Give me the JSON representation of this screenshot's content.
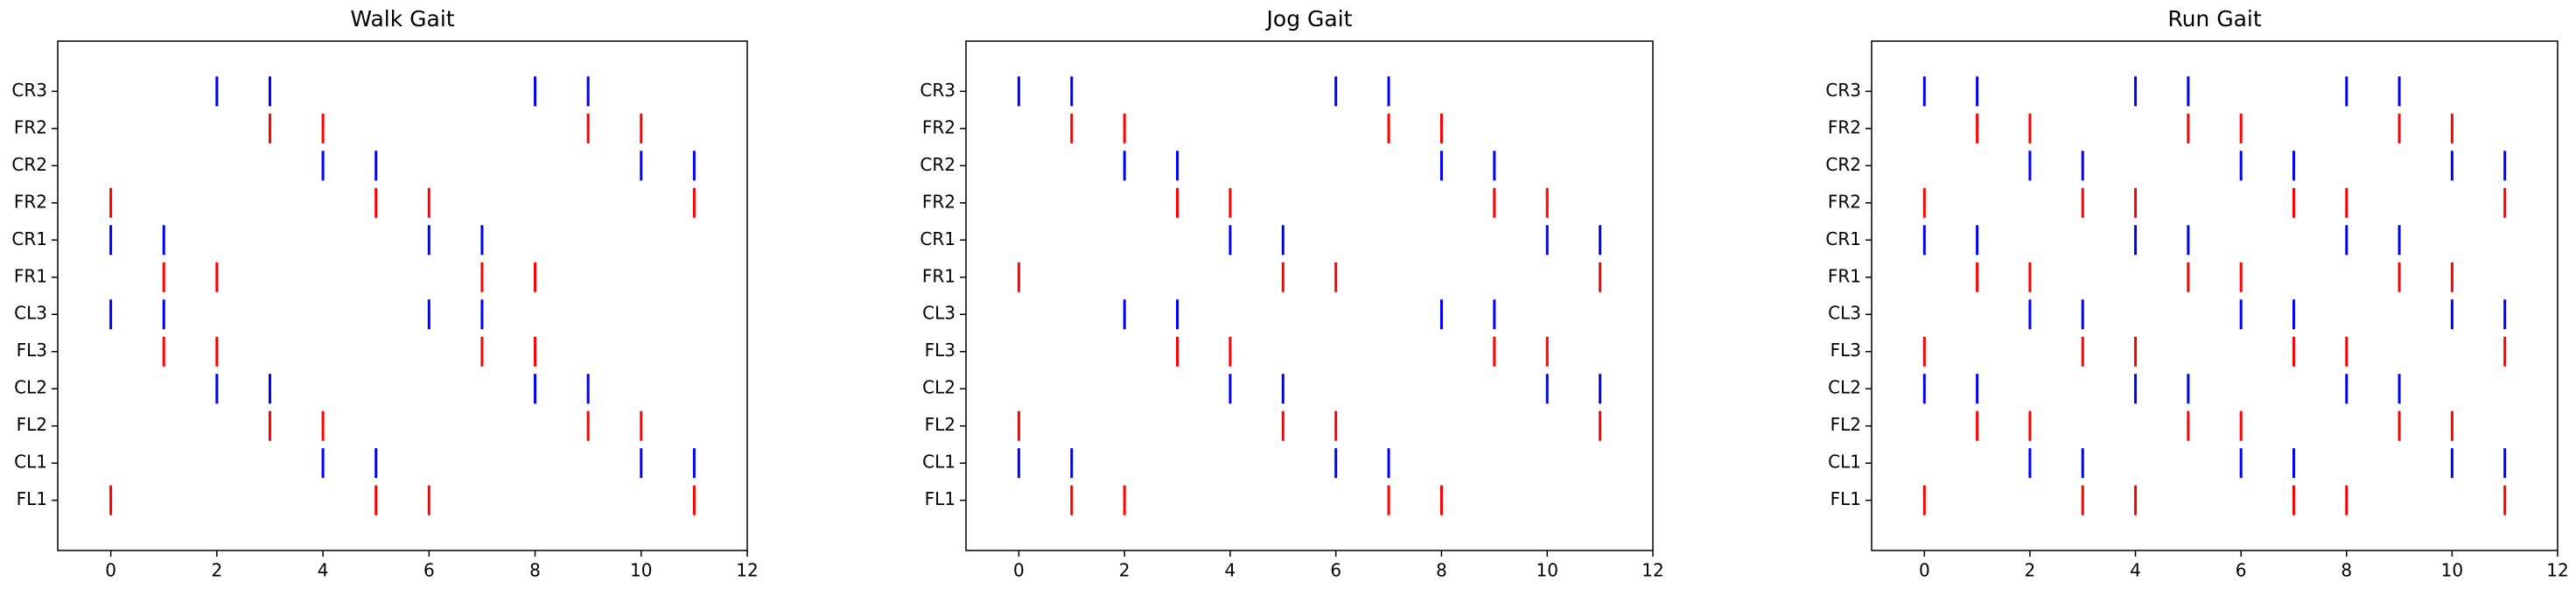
{
  "chart_data": [
    {
      "type": "eventplot",
      "title": "Walk Gait",
      "categories": [
        "FL1",
        "CL1",
        "FL2",
        "CL2",
        "FL3",
        "CL3",
        "FR1",
        "CR1",
        "FR2",
        "CR2",
        "FR2",
        "CR3"
      ],
      "colors": [
        "red",
        "blue",
        "red",
        "blue",
        "red",
        "blue",
        "red",
        "blue",
        "red",
        "blue",
        "red",
        "blue"
      ],
      "values": [
        [
          0,
          5,
          6,
          11
        ],
        [
          4,
          5,
          10,
          11
        ],
        [
          3,
          4,
          9,
          10
        ],
        [
          2,
          3,
          8,
          9
        ],
        [
          1,
          2,
          7,
          8
        ],
        [
          0,
          1,
          6,
          7
        ],
        [
          1,
          2,
          7,
          8
        ],
        [
          0,
          1,
          6,
          7
        ],
        [
          0,
          5,
          6,
          11
        ],
        [
          4,
          5,
          10,
          11
        ],
        [
          3,
          4,
          9,
          10
        ],
        [
          2,
          3,
          8,
          9
        ]
      ],
      "xlim": [
        -1,
        12
      ],
      "xticks": [
        0,
        2,
        4,
        6,
        8,
        10,
        12
      ]
    },
    {
      "type": "eventplot",
      "title": "Jog Gait",
      "categories": [
        "FL1",
        "CL1",
        "FL2",
        "CL2",
        "FL3",
        "CL3",
        "FR1",
        "CR1",
        "FR2",
        "CR2",
        "FR2",
        "CR3"
      ],
      "colors": [
        "red",
        "blue",
        "red",
        "blue",
        "red",
        "blue",
        "red",
        "blue",
        "red",
        "blue",
        "red",
        "blue"
      ],
      "values": [
        [
          1,
          2,
          7,
          8
        ],
        [
          0,
          1,
          6,
          7
        ],
        [
          0,
          5,
          6,
          11
        ],
        [
          4,
          5,
          10,
          11
        ],
        [
          3,
          4,
          9,
          10
        ],
        [
          2,
          3,
          8,
          9
        ],
        [
          0,
          5,
          6,
          11
        ],
        [
          4,
          5,
          10,
          11
        ],
        [
          3,
          4,
          9,
          10
        ],
        [
          2,
          3,
          8,
          9
        ],
        [
          1,
          2,
          7,
          8
        ],
        [
          0,
          1,
          6,
          7
        ]
      ],
      "xlim": [
        -1,
        12
      ],
      "xticks": [
        0,
        2,
        4,
        6,
        8,
        10,
        12
      ]
    },
    {
      "type": "eventplot",
      "title": "Run Gait",
      "categories": [
        "FL1",
        "CL1",
        "FL2",
        "CL2",
        "FL3",
        "CL3",
        "FR1",
        "CR1",
        "FR2",
        "CR2",
        "FR2",
        "CR3"
      ],
      "colors": [
        "red",
        "blue",
        "red",
        "blue",
        "red",
        "blue",
        "red",
        "blue",
        "red",
        "blue",
        "red",
        "blue"
      ],
      "values": [
        [
          0,
          3,
          4,
          7,
          8,
          11
        ],
        [
          2,
          3,
          6,
          7,
          10,
          11
        ],
        [
          1,
          2,
          5,
          6,
          9,
          10
        ],
        [
          0,
          1,
          4,
          5,
          8,
          9
        ],
        [
          0,
          3,
          4,
          7,
          8,
          11
        ],
        [
          2,
          3,
          6,
          7,
          10,
          11
        ],
        [
          1,
          2,
          5,
          6,
          9,
          10
        ],
        [
          0,
          1,
          4,
          5,
          8,
          9
        ],
        [
          0,
          3,
          4,
          7,
          8,
          11
        ],
        [
          2,
          3,
          6,
          7,
          10,
          11
        ],
        [
          1,
          2,
          5,
          6,
          9,
          10
        ],
        [
          0,
          1,
          4,
          5,
          8,
          9
        ]
      ],
      "xlim": [
        -1,
        12
      ],
      "xticks": [
        0,
        2,
        4,
        6,
        8,
        10,
        12
      ]
    }
  ]
}
